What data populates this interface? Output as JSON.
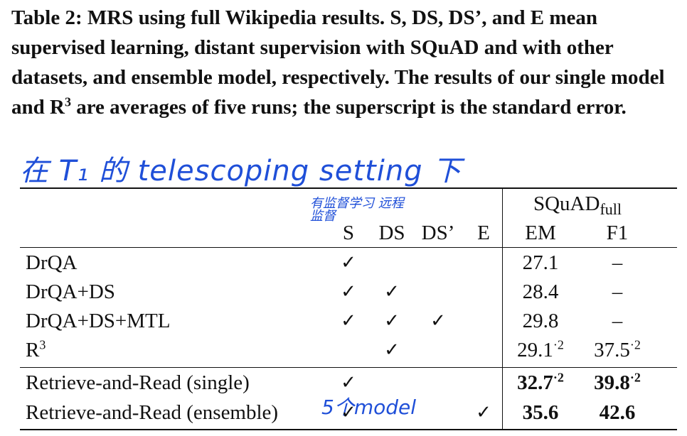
{
  "caption": {
    "label": "Table 2:",
    "text": "MRS using full Wikipedia results. S, DS, DS’, and E mean supervised learning, distant supervision with SQuAD and with other datasets, and ensemble model, respectively. The results of our single model and R",
    "sup": "3",
    "text_after": " are averages of five runs; the superscript is the standard error."
  },
  "annotations": {
    "top": "在 T₁ 的 telescoping setting 下",
    "header_s": "有监督学习",
    "header_ds": "远程监督",
    "model_note": "5个model"
  },
  "table": {
    "group_header": "SQuAD",
    "group_sub": "full",
    "columns": [
      "S",
      "DS",
      "DS’",
      "E",
      "EM",
      "F1"
    ],
    "check_symbol": "✓",
    "rows": [
      {
        "name": "DrQA",
        "name_sup": "",
        "s": "✓",
        "ds": "",
        "dsp": "",
        "e": "",
        "em": "27.1",
        "em_sup": "",
        "f1": "–",
        "f1_sup": ""
      },
      {
        "name": "DrQA+DS",
        "name_sup": "",
        "s": "✓",
        "ds": "✓",
        "dsp": "",
        "e": "",
        "em": "28.4",
        "em_sup": "",
        "f1": "–",
        "f1_sup": ""
      },
      {
        "name": "DrQA+DS+MTL",
        "name_sup": "",
        "s": "✓",
        "ds": "✓",
        "dsp": "✓",
        "e": "",
        "em": "29.8",
        "em_sup": "",
        "f1": "–",
        "f1_sup": ""
      },
      {
        "name": "R",
        "name_sup": "3",
        "s": "",
        "ds": "✓",
        "dsp": "",
        "e": "",
        "em": "29.1",
        "em_sup": "·2",
        "f1": "37.5",
        "f1_sup": "·2"
      },
      {
        "name": "Retrieve-and-Read (single)",
        "name_sup": "",
        "s": "✓",
        "ds": "",
        "dsp": "",
        "e": "",
        "em": "32.7",
        "em_sup": "·2",
        "f1": "39.8",
        "f1_sup": "·2"
      },
      {
        "name": "Retrieve-and-Read (ensemble)",
        "name_sup": "",
        "s": "✓",
        "ds": "",
        "dsp": "",
        "e": "✓",
        "em": "35.6",
        "em_sup": "",
        "f1": "42.6",
        "f1_sup": ""
      }
    ]
  }
}
